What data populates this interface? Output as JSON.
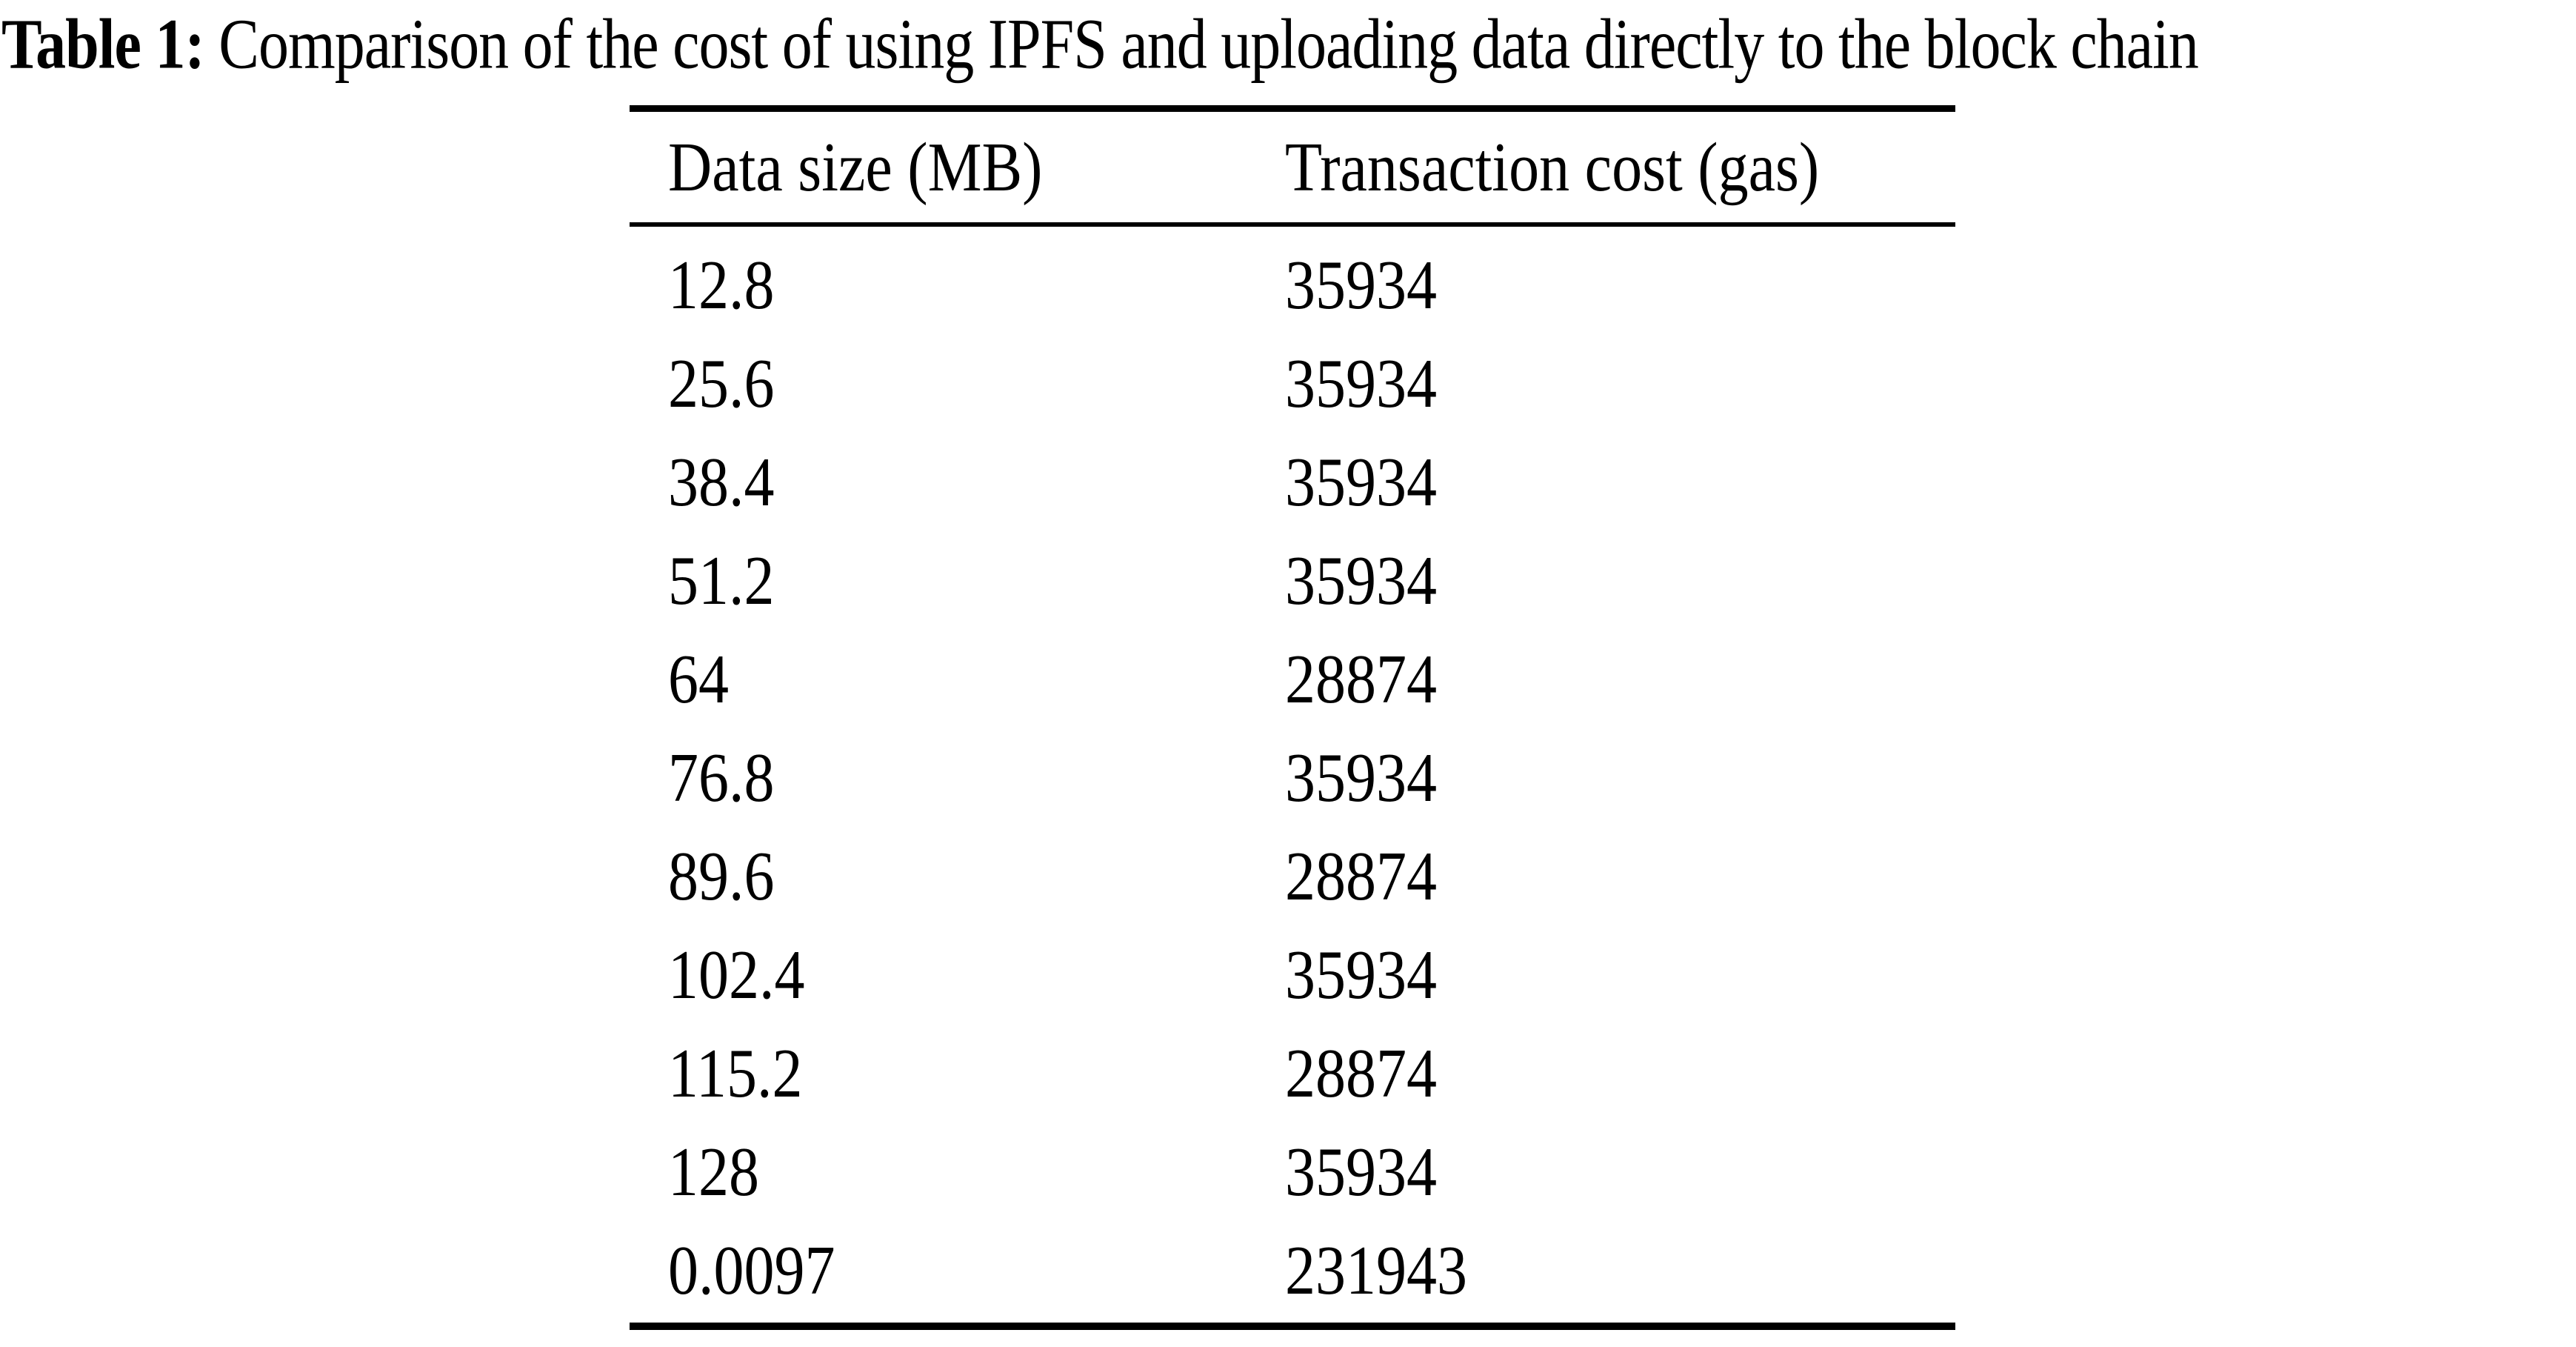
{
  "page": {
    "background": "#ffffff",
    "text_color": "#000000"
  },
  "caption": {
    "label": "Table 1:",
    "text": " Comparison of the cost of using IPFS and uploading data directly to the block chain"
  },
  "table": {
    "columns": [
      "Data size (MB)",
      "Transaction cost (gas)"
    ],
    "rows": [
      [
        "12.8",
        "35934"
      ],
      [
        "25.6",
        "35934"
      ],
      [
        "38.4",
        "35934"
      ],
      [
        "51.2",
        "35934"
      ],
      [
        "64",
        "28874"
      ],
      [
        "76.8",
        "35934"
      ],
      [
        "89.6",
        "28874"
      ],
      [
        "102.4",
        "35934"
      ],
      [
        "115.2",
        "28874"
      ],
      [
        "128",
        "35934"
      ],
      [
        "0.0097",
        "231943"
      ]
    ]
  },
  "chart_data": {
    "type": "table",
    "title": "Table 1: Comparison of the cost of using IPFS and uploading data directly to the block chain",
    "columns": [
      "Data size (MB)",
      "Transaction cost (gas)"
    ],
    "rows": [
      [
        12.8,
        35934
      ],
      [
        25.6,
        35934
      ],
      [
        38.4,
        35934
      ],
      [
        51.2,
        35934
      ],
      [
        64,
        28874
      ],
      [
        76.8,
        35934
      ],
      [
        89.6,
        28874
      ],
      [
        102.4,
        35934
      ],
      [
        115.2,
        28874
      ],
      [
        128,
        35934
      ],
      [
        0.0097,
        231943
      ]
    ]
  }
}
